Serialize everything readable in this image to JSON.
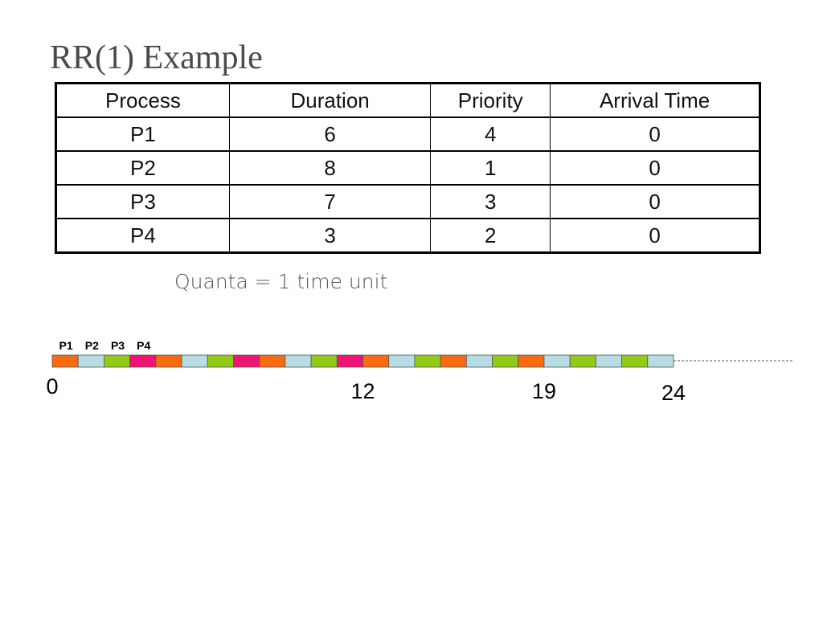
{
  "title": "RR(1) Example",
  "table": {
    "header": [
      "Process",
      "Duration",
      "Priority",
      "Arrival Time"
    ],
    "rows": [
      [
        "P1",
        "6",
        "4",
        "0"
      ],
      [
        "P2",
        "8",
        "1",
        "0"
      ],
      [
        "P3",
        "7",
        "3",
        "0"
      ],
      [
        "P4",
        "3",
        "2",
        "0"
      ]
    ]
  },
  "note": "Quanta = 1 time unit",
  "timeline": {
    "legend": [
      "P1",
      "P2",
      "P3",
      "P4"
    ],
    "slot_colors": [
      "#f96a12",
      "#b7dde4",
      "#8fcb17",
      "#ef1473",
      "#f96a12",
      "#b7dde4",
      "#8fcb17",
      "#ef1473",
      "#f96a12",
      "#b7dde4",
      "#8fcb17",
      "#ef1473",
      "#f96a12",
      "#b7dde4",
      "#8fcb17",
      "#f96a12",
      "#b7dde4",
      "#8fcb17",
      "#f96a12",
      "#b7dde4",
      "#8fcb17",
      "#b7dde4",
      "#8fcb17",
      "#b7dde4"
    ],
    "ticks": [
      0,
      12,
      19,
      24
    ]
  }
}
